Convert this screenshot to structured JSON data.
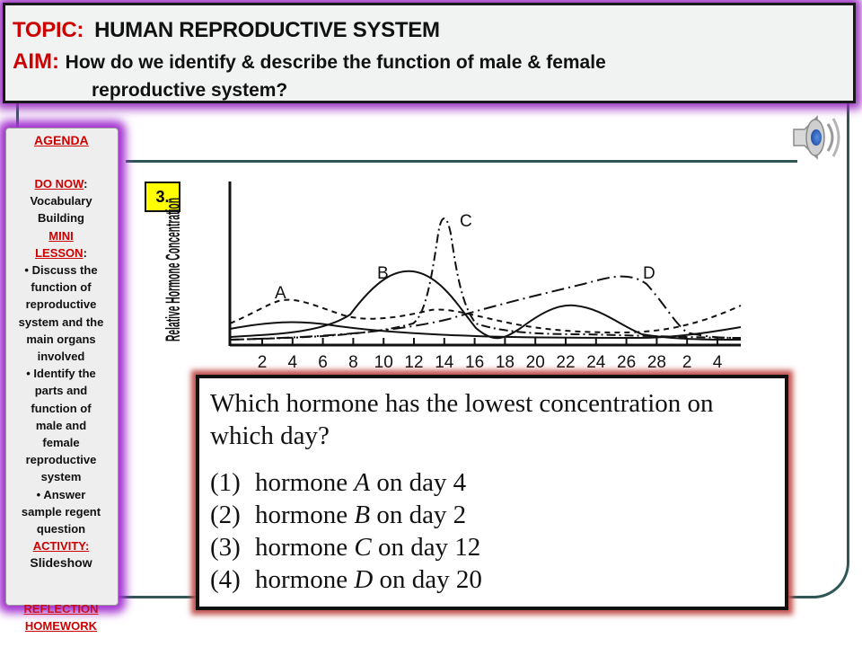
{
  "header": {
    "topic_label": "TOPIC:",
    "topic_value": "HUMAN REPRODUCTIVE SYSTEM",
    "aim_label": "AIM:",
    "aim_line1": "How do we identify & describe the function of male & female",
    "aim_line2": "reproductive system?"
  },
  "sidebar": {
    "agenda_title": "AGENDA",
    "do_now_label": "DO NOW",
    "do_now_colon": ":",
    "do_now_text_1": "Vocabulary",
    "do_now_text_2": "Building",
    "mini_label_1": "MINI",
    "mini_label_2": "LESSON",
    "mini_colon": ":",
    "bullet_1": "• Discuss the",
    "bullet_1b": "function of",
    "bullet_1c": "reproductive",
    "bullet_1d": "system and the",
    "bullet_1e": "main organs",
    "bullet_1f": "involved",
    "bullet_2": "• Identify the",
    "bullet_2b": "parts and",
    "bullet_2c": "function of",
    "bullet_2d": "male and",
    "bullet_2e": "female",
    "bullet_2f": "reproductive",
    "bullet_2g": "system",
    "bullet_3": "• Answer",
    "bullet_3b": "sample regent",
    "bullet_3c": "question",
    "activity_label": "ACTIVITY:",
    "activity_text": "Slideshow",
    "reflection": "REFLECTION",
    "homework": "HOMEWORK"
  },
  "question_number": "3.",
  "chart_data": {
    "type": "line",
    "ylabel": "Relative Hormone Concentration",
    "xlabel": "",
    "x_ticks": [
      "2",
      "4",
      "6",
      "8",
      "10",
      "12",
      "14",
      "16",
      "18",
      "20",
      "22",
      "24",
      "26",
      "28",
      "2",
      "4"
    ],
    "series": [
      {
        "name": "A",
        "style": "dashed"
      },
      {
        "name": "B",
        "style": "solid"
      },
      {
        "name": "C",
        "style": "dash-dot"
      },
      {
        "name": "D",
        "style": "long-dash-dot"
      }
    ]
  },
  "question": {
    "text": "Which hormone has the lowest concentration on which day?",
    "options": [
      {
        "num": "(1)",
        "pre": "hormone ",
        "letter": "A",
        "post": " on day 4"
      },
      {
        "num": "(2)",
        "pre": "hormone ",
        "letter": "B",
        "post": " on day 2"
      },
      {
        "num": "(3)",
        "pre": "hormone ",
        "letter": "C",
        "post": " on day 12"
      },
      {
        "num": "(4)",
        "pre": "hormone ",
        "letter": "D",
        "post": " on day 20"
      }
    ]
  },
  "icons": {
    "speaker": "speaker-icon"
  }
}
